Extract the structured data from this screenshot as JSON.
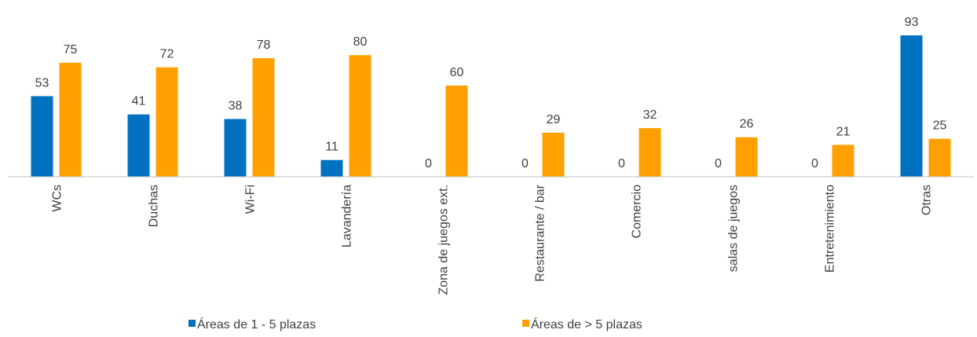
{
  "chart_data": {
    "type": "bar",
    "categories": [
      "WCs",
      "Duchas",
      "Wi-Fi",
      "Lavandería",
      "Zona de juegos ext.",
      "Restaurante / bar",
      "Comercio",
      "salas de juegos",
      "Entretenimiento",
      "Otras"
    ],
    "series": [
      {
        "name": "Áreas de 1 - 5 plazas",
        "color": "#0070c0",
        "values": [
          53,
          41,
          38,
          11,
          0,
          0,
          0,
          0,
          0,
          93
        ]
      },
      {
        "name": "Áreas de > 5 plazas",
        "color": "#ffa000",
        "values": [
          75,
          72,
          78,
          80,
          60,
          29,
          32,
          26,
          21,
          25
        ]
      }
    ],
    "ylim": [
      0,
      100
    ],
    "grid": false,
    "legend": "bottom"
  }
}
